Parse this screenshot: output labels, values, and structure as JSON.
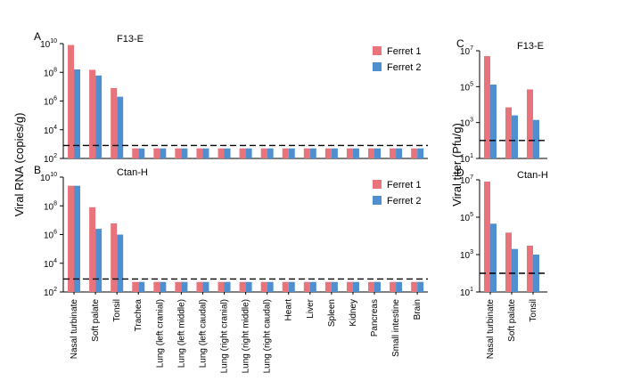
{
  "figure": {
    "ylabel_left": "Viral RNA (copies/g)",
    "ylabel_right": "Viral titer (Pfu/g)"
  },
  "chart_data": [
    {
      "panel": "A",
      "type": "bar",
      "title": "F13-E",
      "scale": "log",
      "ylim_exp": [
        2,
        10
      ],
      "yticks_exp": [
        2,
        4,
        6,
        8,
        10
      ],
      "tick_label_base": "10",
      "detection_limit": 800,
      "legend_position": "top-right",
      "categories": [
        "Nasal turbinate",
        "Soft palate",
        "Tonsil",
        "Trachea",
        "Lung (left cranial)",
        "Lung (left middle)",
        "Lung (left caudal)",
        "Lung (right cranial)",
        "Lung (right middle)",
        "Lung (right caudal)",
        "Heart",
        "Liver",
        "Spleen",
        "Kidney",
        "Pancreas",
        "Small intestine",
        "Brain"
      ],
      "series": [
        {
          "name": "Ferret 1",
          "color": "#e8737a",
          "values": [
            8000000000.0,
            150000000.0,
            8000000.0,
            500,
            500,
            500,
            500,
            500,
            500,
            500,
            500,
            500,
            500,
            500,
            500,
            500,
            500
          ]
        },
        {
          "name": "Ferret 2",
          "color": "#4f8fd0",
          "values": [
            160000000.0,
            60000000.0,
            2000000.0,
            500,
            500,
            500,
            500,
            500,
            500,
            500,
            500,
            500,
            500,
            500,
            500,
            500,
            500
          ]
        }
      ]
    },
    {
      "panel": "B",
      "type": "bar",
      "title": "Ctan-H",
      "scale": "log",
      "ylim_exp": [
        2,
        10
      ],
      "yticks_exp": [
        2,
        4,
        6,
        8,
        10
      ],
      "tick_label_base": "10",
      "detection_limit": 800,
      "legend_position": "top-right",
      "categories": [
        "Nasal turbinate",
        "Soft palate",
        "Tonsil",
        "Trachea",
        "Lung (left cranial)",
        "Lung (left middle)",
        "Lung (left caudal)",
        "Lung (right cranial)",
        "Lung (right middle)",
        "Lung (right caudal)",
        "Heart",
        "Liver",
        "Spleen",
        "Kidney",
        "Pancreas",
        "Small intestine",
        "Brain"
      ],
      "series": [
        {
          "name": "Ferret 1",
          "color": "#e8737a",
          "values": [
            2500000000.0,
            80000000.0,
            6000000.0,
            500,
            500,
            500,
            500,
            500,
            500,
            500,
            500,
            500,
            500,
            500,
            500,
            500,
            500
          ]
        },
        {
          "name": "Ferret 2",
          "color": "#4f8fd0",
          "values": [
            2500000000.0,
            2500000.0,
            1000000.0,
            500,
            500,
            500,
            500,
            500,
            500,
            500,
            500,
            500,
            500,
            500,
            500,
            500,
            500
          ]
        }
      ]
    },
    {
      "panel": "C",
      "type": "bar",
      "title": "F13-E",
      "scale": "log",
      "ylim_exp": [
        1,
        7
      ],
      "yticks_exp": [
        1,
        3,
        5,
        7
      ],
      "tick_label_base": "10",
      "detection_limit": 100,
      "categories": [
        "Nasal turbinate",
        "Soft palate",
        "Tonsil"
      ],
      "series": [
        {
          "name": "Ferret 1",
          "color": "#e8737a",
          "values": [
            5000000.0,
            7000,
            70000
          ]
        },
        {
          "name": "Ferret 2",
          "color": "#4f8fd0",
          "values": [
            130000,
            2500,
            1400
          ]
        }
      ]
    },
    {
      "panel": "D",
      "type": "bar",
      "title": "Ctan-H",
      "scale": "log",
      "ylim_exp": [
        1,
        7
      ],
      "yticks_exp": [
        1,
        3,
        5,
        7
      ],
      "tick_label_base": "10",
      "detection_limit": 100,
      "categories": [
        "Nasal turbinate",
        "Soft palate",
        "Tonsil"
      ],
      "series": [
        {
          "name": "Ferret 1",
          "color": "#e8737a",
          "values": [
            8000000.0,
            15000,
            3000
          ]
        },
        {
          "name": "Ferret 2",
          "color": "#4f8fd0",
          "values": [
            45000,
            2000,
            1000
          ]
        }
      ]
    }
  ]
}
